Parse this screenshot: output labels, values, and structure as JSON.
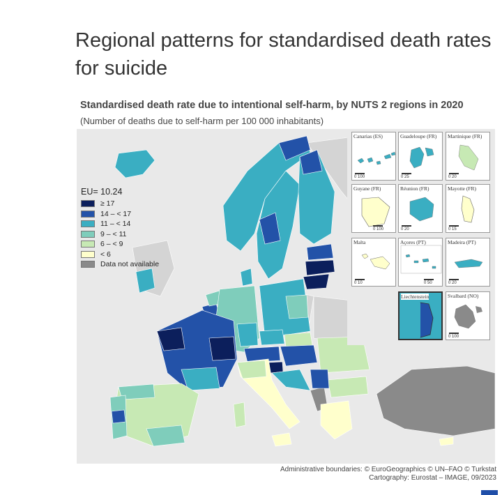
{
  "page": {
    "title": "Regional patterns for standardised death rates for suicide"
  },
  "map": {
    "title": "Standardised death rate due to intentional self-harm, by NUTS 2 regions in 2020",
    "subtitle": "(Number of deaths due to self-harm per 100 000 inhabitants)",
    "legend": {
      "header": "EU= 10.24",
      "classes": [
        {
          "label": "≥ 17",
          "color": "#0c1f5c"
        },
        {
          "label": "14 – < 17",
          "color": "#2352a8"
        },
        {
          "label": "11 – < 14",
          "color": "#3aaec2"
        },
        {
          "label": "9 – < 11",
          "color": "#7fcdbb"
        },
        {
          "label": "6 – < 9",
          "color": "#c7e9b4"
        },
        {
          "label": "< 6",
          "color": "#ffffcc"
        },
        {
          "label": "Data not available",
          "color": "#8a8a8a"
        }
      ]
    },
    "insets": [
      {
        "label": "Canarias (ES)",
        "scale": [
          "0",
          "100"
        ]
      },
      {
        "label": "Guadeloupe (FR)",
        "scale": [
          "0",
          "25"
        ]
      },
      {
        "label": "Martinique (FR)",
        "scale": [
          "0",
          "20"
        ]
      },
      {
        "label": "Guyane (FR)",
        "scale": [
          "0",
          "100"
        ]
      },
      {
        "label": "Réunion (FR)",
        "scale": [
          "0",
          "20"
        ]
      },
      {
        "label": "Mayotte (FR)",
        "scale": [
          "0",
          "15"
        ]
      },
      {
        "label": "Malta",
        "scale": [
          "0",
          "10"
        ]
      },
      {
        "label": "Açores (PT)",
        "scale": [
          "0",
          "50"
        ]
      },
      {
        "label": "Madeira (PT)",
        "scale": [
          "0",
          "20"
        ]
      },
      {
        "label": "Liechtenstein",
        "scale": [
          "",
          ""
        ]
      },
      {
        "label": "Svalbard (NO)",
        "scale": [
          "0",
          "100"
        ]
      }
    ],
    "credits": {
      "line1": "Administrative boundaries: © EuroGeographics © UN–FAO © Turkstat",
      "line2": "Cartography: Eurostat – IMAGE, 09/2023"
    }
  }
}
